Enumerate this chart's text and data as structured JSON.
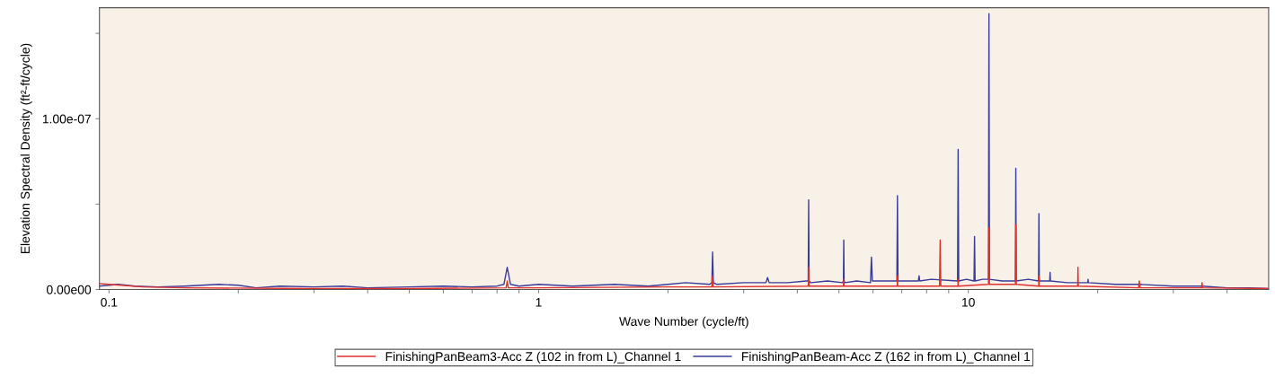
{
  "chart_data": {
    "type": "line",
    "xlabel": "Wave Number (cycle/ft)",
    "ylabel": "Elevation Spectral Density (ft²-ft/cycle)",
    "log": "x",
    "xlim": [
      0.095,
      50
    ],
    "ylim": [
      0,
      1.65e-07
    ],
    "xticks": [
      0.1,
      1,
      10,
      {
        "value": 0.2,
        "label": null
      },
      {
        "value": 0.3,
        "label": null
      },
      {
        "value": 0.4,
        "label": null
      },
      {
        "value": 0.5,
        "label": null
      },
      {
        "value": 0.6,
        "label": null
      },
      {
        "value": 0.7,
        "label": null
      },
      {
        "value": 0.8,
        "label": null
      },
      {
        "value": 0.9,
        "label": null
      },
      {
        "value": 2,
        "label": null
      },
      {
        "value": 3,
        "label": null
      },
      {
        "value": 4,
        "label": null
      },
      {
        "value": 5,
        "label": null
      },
      {
        "value": 6,
        "label": null
      },
      {
        "value": 7,
        "label": null
      },
      {
        "value": 8,
        "label": null
      },
      {
        "value": 9,
        "label": null
      },
      {
        "value": 20,
        "label": null
      },
      {
        "value": 30,
        "label": null
      },
      {
        "value": 40,
        "label": null
      }
    ],
    "yticks": [
      {
        "value": 0,
        "label": "0.00e00"
      },
      {
        "value": 5e-08,
        "label": null
      },
      {
        "value": 1e-07,
        "label": "1.00e-07"
      },
      {
        "value": 1.5e-07,
        "label": null
      }
    ],
    "grid": false,
    "legend": "bottom",
    "marker": "none",
    "line_style": "solid",
    "series": [
      {
        "name": "FinishingPanBeam3-Acc Z (102 in from L)_Channel 1",
        "color": "#e03030",
        "x": [
          0.095,
          0.1,
          0.12,
          0.15,
          0.3,
          0.5,
          0.84,
          0.845,
          0.85,
          1,
          2,
          2.53,
          2.54,
          2.55,
          4.24,
          4.25,
          4.26,
          5.12,
          5.13,
          5.14,
          6.83,
          6.84,
          6.85,
          8.57,
          8.6,
          8.63,
          9.46,
          9.47,
          9.48,
          11.14,
          11.17,
          11.2,
          12.87,
          12.9,
          12.93,
          14.58,
          14.6,
          14.62,
          17.97,
          18,
          18.03,
          24.9,
          25,
          25.1,
          34.9,
          35,
          35.1,
          50
        ],
        "values": [
          3.5e-09,
          3e-09,
          1.5e-09,
          1e-09,
          5e-10,
          5e-10,
          1e-09,
          5e-09,
          1e-09,
          1e-09,
          1.5e-09,
          1.5e-09,
          8e-09,
          1.5e-09,
          2e-09,
          1.3e-08,
          2e-09,
          2e-09,
          6e-09,
          2e-09,
          2e-09,
          8e-09,
          2e-09,
          2e-09,
          2.9e-08,
          2e-09,
          2e-09,
          6e-09,
          2e-09,
          3e-09,
          3.6e-08,
          3e-09,
          3e-09,
          3.8e-08,
          3e-09,
          2e-09,
          8e-09,
          2e-09,
          2e-09,
          1.3e-08,
          2e-09,
          1e-09,
          5e-09,
          1e-09,
          1e-09,
          4e-09,
          1e-09,
          5e-10
        ]
      },
      {
        "name": "FinishingPanBeam-Acc Z (162 in from L)_Channel 1",
        "color": "#3a3a9a",
        "x": [
          0.095,
          0.1,
          0.105,
          0.115,
          0.13,
          0.15,
          0.18,
          0.2,
          0.22,
          0.25,
          0.3,
          0.35,
          0.4,
          0.5,
          0.6,
          0.7,
          0.8,
          0.83,
          0.845,
          0.86,
          0.9,
          1.0,
          1.2,
          1.5,
          1.8,
          2.0,
          2.2,
          2.5,
          2.53,
          2.54,
          2.55,
          2.6,
          3.0,
          3.38,
          3.41,
          3.44,
          3.8,
          4.2,
          4.24,
          4.25,
          4.26,
          4.3,
          4.7,
          5.1,
          5.12,
          5.13,
          5.14,
          5.16,
          5.5,
          5.92,
          5.95,
          5.98,
          6.4,
          6.82,
          6.84,
          6.86,
          7.2,
          7.65,
          7.68,
          7.71,
          8.2,
          9.44,
          9.47,
          9.5,
          9.9,
          10.31,
          10.34,
          10.37,
          10.8,
          11.14,
          11.17,
          11.2,
          12,
          12.87,
          12.9,
          12.93,
          13.8,
          14.57,
          14.6,
          14.63,
          15.1,
          15.47,
          15.5,
          15.53,
          17,
          18.97,
          19,
          19.03,
          22,
          25,
          30,
          35,
          40,
          45,
          50
        ],
        "values": [
          2e-09,
          2.5e-09,
          3e-09,
          2e-09,
          1.5e-09,
          2e-09,
          3e-09,
          2.5e-09,
          1e-09,
          2e-09,
          1.5e-09,
          2e-09,
          1e-09,
          1.5e-09,
          2e-09,
          1.5e-09,
          2e-09,
          3e-09,
          1.3e-08,
          3e-09,
          2e-09,
          3e-09,
          2e-09,
          3e-09,
          2e-09,
          3e-09,
          4e-09,
          3e-09,
          4e-09,
          2.2e-08,
          4e-09,
          3e-09,
          4e-09,
          4e-09,
          7e-09,
          4e-09,
          4e-09,
          5e-09,
          5e-09,
          5.25e-08,
          5e-09,
          4e-09,
          5e-09,
          4e-09,
          5e-09,
          2.9e-08,
          5e-09,
          4e-09,
          5e-09,
          4e-09,
          1.9e-08,
          5e-09,
          5e-09,
          5e-09,
          5.5e-08,
          5e-09,
          5e-09,
          5e-09,
          8e-09,
          5e-09,
          6e-09,
          5e-09,
          8.2e-08,
          5e-09,
          6e-09,
          5e-09,
          3.1e-08,
          5e-09,
          6e-09,
          6e-09,
          1.615e-07,
          6e-09,
          5e-09,
          5e-09,
          7.1e-08,
          5e-09,
          6e-09,
          5e-09,
          4.45e-08,
          5e-09,
          5e-09,
          5e-09,
          1e-08,
          5e-09,
          4e-09,
          4e-09,
          6e-09,
          4e-09,
          3e-09,
          3e-09,
          2e-09,
          2e-09,
          1e-09,
          1e-09,
          5e-10
        ]
      }
    ]
  }
}
